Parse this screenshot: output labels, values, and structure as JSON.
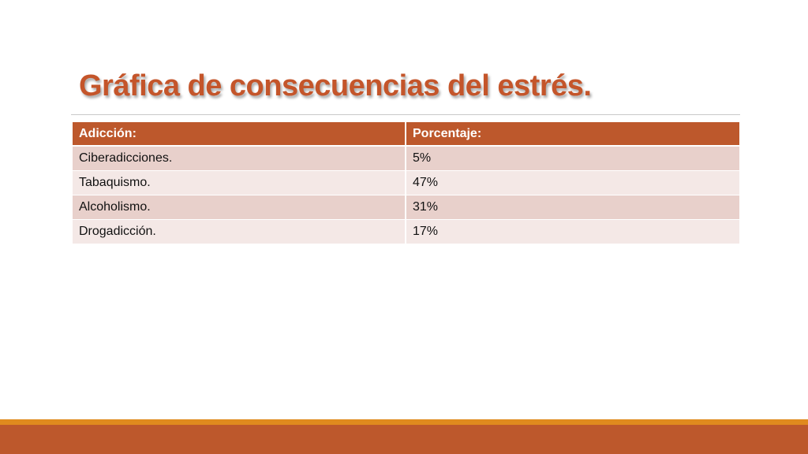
{
  "slide": {
    "title": "Gráfica de consecuencias del estrés."
  },
  "table": {
    "headers": [
      "Adicción:",
      "Porcentaje:"
    ],
    "rows": [
      [
        "Ciberadicciones.",
        "5%"
      ],
      [
        "Tabaquismo.",
        "47%"
      ],
      [
        "Alcoholismo.",
        "31%"
      ],
      [
        "Drogadicción.",
        "17%"
      ]
    ]
  },
  "colors": {
    "accent": "#bd582c",
    "accent_light": "#e08a1e",
    "row_odd": "#e8d0cb",
    "row_even": "#f4e8e6"
  }
}
